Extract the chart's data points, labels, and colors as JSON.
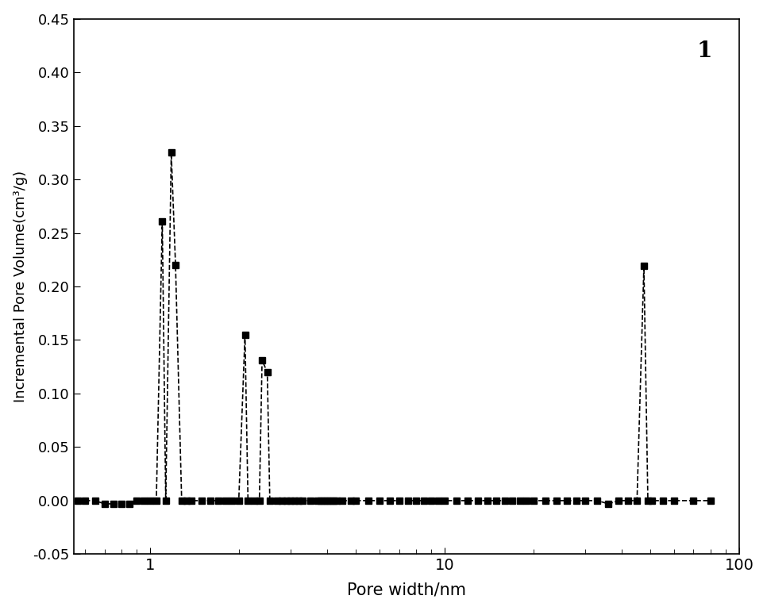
{
  "title_label": "1",
  "xlabel": "Pore width/nm",
  "ylabel": "Incremental Pore Volume(cm³/g)",
  "xlim": [
    0.55,
    100
  ],
  "ylim": [
    -0.05,
    0.45
  ],
  "yticks": [
    -0.05,
    0.0,
    0.05,
    0.1,
    0.15,
    0.2,
    0.25,
    0.3,
    0.35,
    0.4,
    0.45
  ],
  "background_color": "#ffffff",
  "x_data": [
    0.57,
    0.6,
    0.65,
    0.7,
    0.75,
    0.8,
    0.85,
    0.9,
    0.95,
    1.0,
    1.05,
    1.1,
    1.13,
    1.18,
    1.22,
    1.28,
    1.33,
    1.38,
    1.5,
    1.6,
    1.7,
    1.8,
    1.9,
    2.0,
    2.1,
    2.15,
    2.25,
    2.35,
    2.4,
    2.5,
    2.55,
    2.7,
    2.8,
    2.9,
    3.0,
    3.1,
    3.2,
    3.3,
    3.5,
    3.7,
    3.8,
    3.9,
    4.0,
    4.1,
    4.2,
    4.3,
    4.5,
    4.8,
    5.0,
    5.5,
    6.0,
    6.5,
    7.0,
    7.5,
    8.0,
    8.5,
    9.0,
    9.5,
    10.0,
    11.0,
    12.0,
    13.0,
    14.0,
    15.0,
    16.0,
    17.0,
    18.0,
    19.0,
    20.0,
    22.0,
    24.0,
    26.0,
    28.0,
    30.0,
    33.0,
    36.0,
    39.0,
    42.0,
    45.0,
    47.5,
    49.0,
    50.5,
    55.0,
    60.0,
    70.0,
    80.0
  ],
  "y_data": [
    0.0,
    0.0,
    0.0,
    -0.003,
    -0.003,
    -0.003,
    -0.003,
    0.0,
    0.0,
    0.0,
    0.0,
    0.261,
    0.0,
    0.325,
    0.22,
    0.0,
    0.0,
    0.0,
    0.0,
    0.0,
    0.0,
    0.0,
    0.0,
    0.0,
    0.155,
    0.0,
    0.0,
    0.0,
    0.131,
    0.12,
    0.0,
    0.0,
    0.0,
    0.0,
    0.0,
    0.0,
    0.0,
    0.0,
    0.0,
    0.0,
    0.0,
    0.0,
    0.0,
    0.0,
    0.0,
    0.0,
    0.0,
    0.0,
    0.0,
    0.0,
    0.0,
    0.0,
    0.0,
    0.0,
    0.0,
    0.0,
    0.0,
    0.0,
    0.0,
    0.0,
    0.0,
    0.0,
    0.0,
    0.0,
    0.0,
    0.0,
    0.0,
    0.0,
    0.0,
    0.0,
    0.0,
    0.0,
    0.0,
    0.0,
    0.0,
    -0.003,
    0.0,
    0.0,
    0.0,
    0.219,
    0.0,
    0.0,
    0.0,
    0.0,
    0.0,
    0.0
  ],
  "line_color": "#000000",
  "marker": "s",
  "marker_size": 6,
  "linestyle": "--",
  "linewidth": 1.2,
  "major_xticks": [
    1,
    10,
    100
  ],
  "major_xtick_labels": [
    "1",
    "10",
    "100"
  ]
}
